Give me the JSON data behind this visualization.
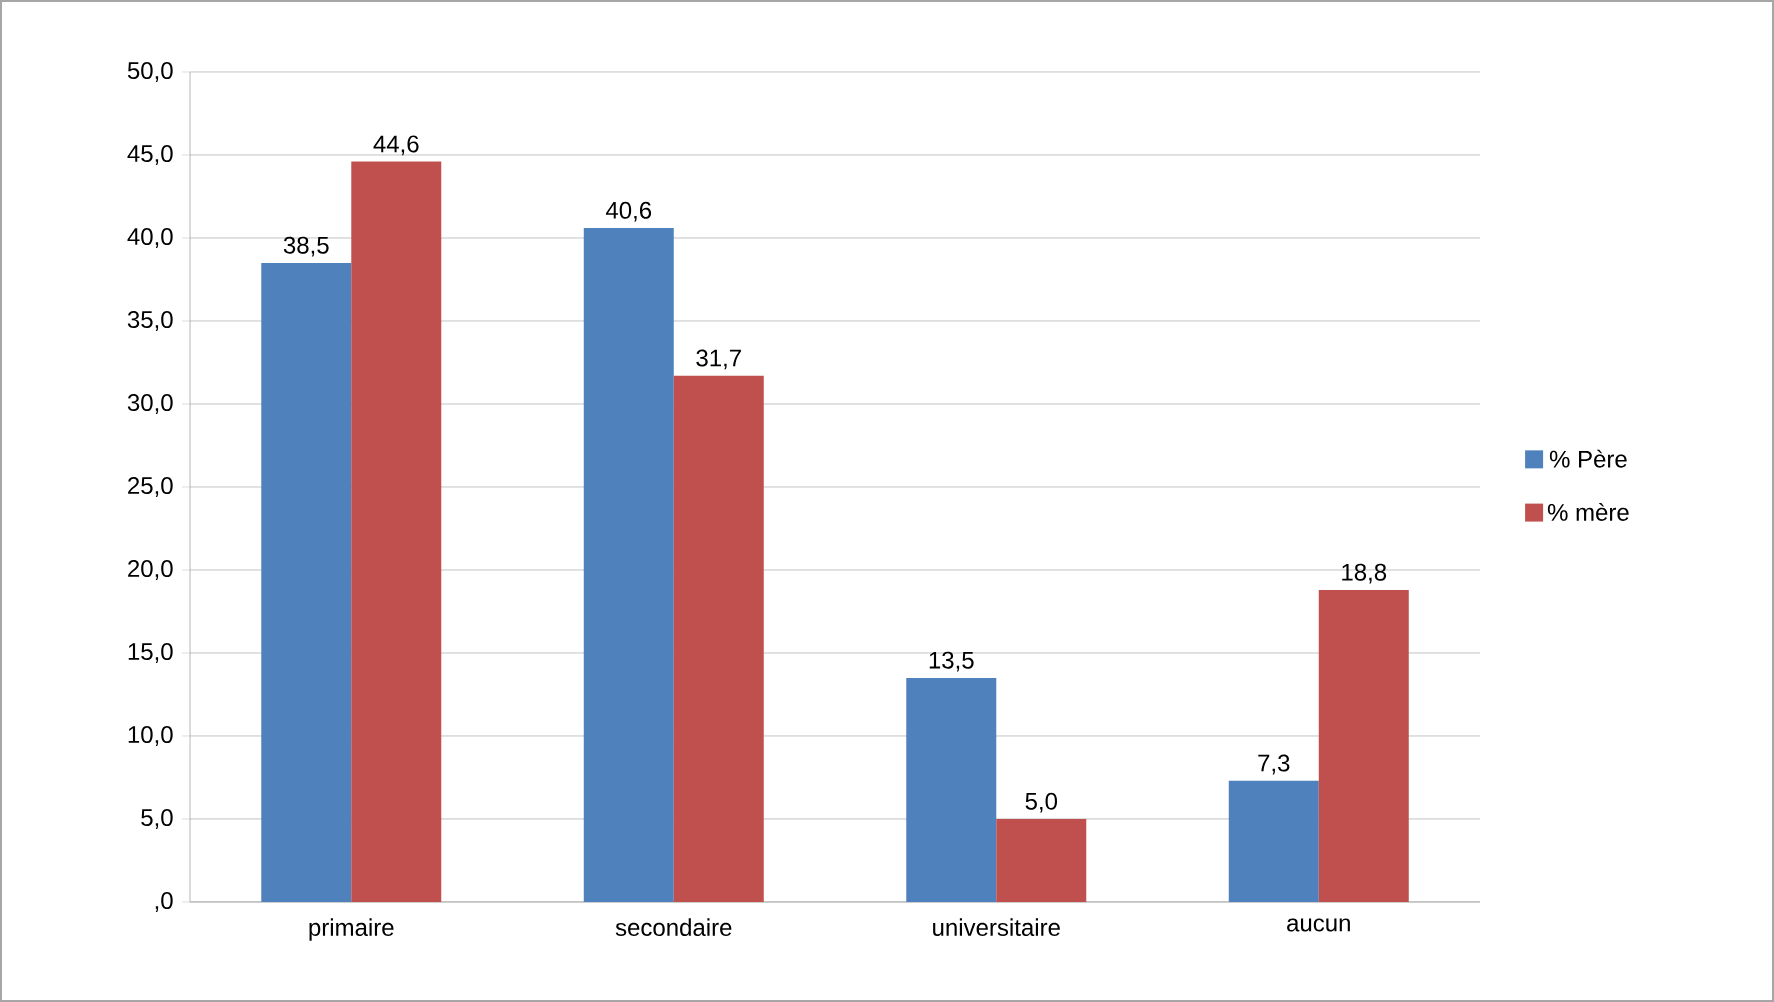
{
  "chart_data": {
    "type": "bar",
    "categories": [
      "primaire",
      "secondaire",
      "universitaire",
      "aucun"
    ],
    "series": [
      {
        "name": "% Père",
        "color": "#4f81bd",
        "values": [
          38.5,
          40.6,
          13.5,
          7.3
        ],
        "value_labels": [
          "38,5",
          "40,6",
          "13,5",
          "7,3"
        ]
      },
      {
        "name": "% mère",
        "color": "#c0504d",
        "values": [
          44.6,
          31.7,
          5.0,
          18.8
        ],
        "value_labels": [
          "44,6",
          "31,7",
          "5,0",
          "18,8"
        ]
      }
    ],
    "ylim": [
      0,
      50
    ],
    "yticks": [
      {
        "value": 0,
        "label": ",0"
      },
      {
        "value": 5,
        "label": "5,0"
      },
      {
        "value": 10,
        "label": "10,0"
      },
      {
        "value": 15,
        "label": "15,0"
      },
      {
        "value": 20,
        "label": "20,0"
      },
      {
        "value": 25,
        "label": "25,0"
      },
      {
        "value": 30,
        "label": "30,0"
      },
      {
        "value": 35,
        "label": "35,0"
      },
      {
        "value": 40,
        "label": "40,0"
      },
      {
        "value": 45,
        "label": "45,0"
      },
      {
        "value": 50,
        "label": "50,0"
      }
    ],
    "grid": "y",
    "legend": "right"
  }
}
